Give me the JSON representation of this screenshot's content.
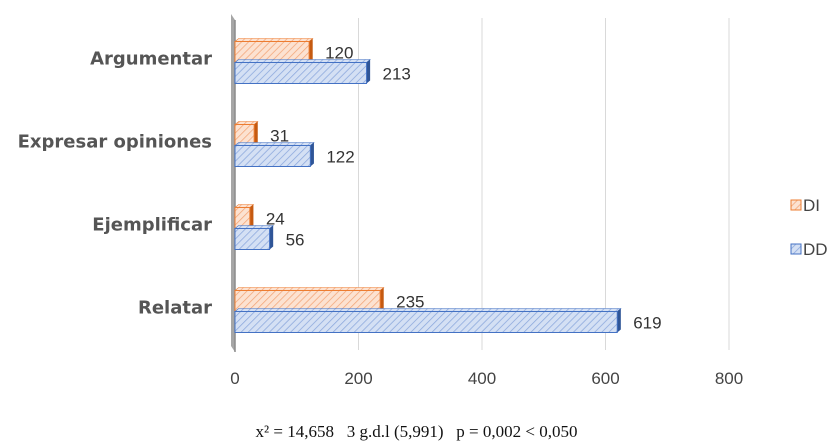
{
  "chart_data": {
    "type": "bar",
    "orientation": "horizontal",
    "categories": [
      "Argumentar",
      "Expresar opiniones",
      "Ejemplificar",
      "Relatar"
    ],
    "series": [
      {
        "name": "DI",
        "values": [
          120,
          31,
          24,
          235
        ],
        "color": "#ED7D31"
      },
      {
        "name": "DD",
        "values": [
          213,
          122,
          56,
          619
        ],
        "color": "#4472C4"
      }
    ],
    "xlim": [
      0,
      800
    ],
    "xticks": [
      0,
      200,
      400,
      600,
      800
    ],
    "grid": true,
    "legend_position": "right",
    "title": "",
    "xlabel": "",
    "ylabel": ""
  },
  "note": "x² = 14,658   3 g.d.l (5,991)   p = 0,002 < 0,050"
}
